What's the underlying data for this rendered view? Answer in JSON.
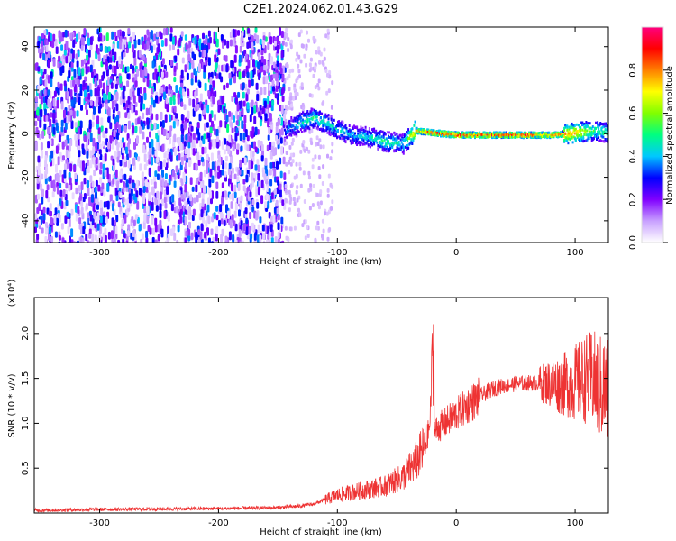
{
  "page": {
    "title": "C2E1.2024.062.01.43.G29"
  },
  "chart_data": [
    {
      "type": "heatmap",
      "xlabel": "Height of straight line (km)",
      "ylabel": "Frequency (Hz)",
      "xlim": [
        -355,
        128
      ],
      "ylim": [
        -50,
        49
      ],
      "xticks": [
        -300,
        -200,
        -100,
        0,
        100
      ],
      "yticks": [
        -40,
        -20,
        0,
        20,
        40
      ],
      "colorbar": {
        "label": "Normalized spectral amplitude",
        "range": [
          0.0,
          1.0
        ],
        "ticks": [
          "0.0",
          "0.2",
          "0.4",
          "0.6",
          "0.8"
        ],
        "colors": [
          "#ffffff",
          "#c8a0ff",
          "#8000ff",
          "#0000ff",
          "#00c8ff",
          "#00ff80",
          "#80ff00",
          "#ffff00",
          "#ff8000",
          "#ff0000",
          "#ff0080"
        ]
      },
      "noise_region": {
        "x_range": [
          -355,
          -145
        ],
        "y_range": [
          -50,
          49
        ]
      },
      "signal_track": [
        {
          "x": -145,
          "y": 2,
          "amp": 0.35
        },
        {
          "x": -130,
          "y": 6,
          "amp": 0.45
        },
        {
          "x": -120,
          "y": 8,
          "amp": 0.5
        },
        {
          "x": -105,
          "y": 4,
          "amp": 0.45
        },
        {
          "x": -90,
          "y": 0,
          "amp": 0.4
        },
        {
          "x": -75,
          "y": -1,
          "amp": 0.45
        },
        {
          "x": -60,
          "y": -3,
          "amp": 0.5
        },
        {
          "x": -45,
          "y": -4,
          "amp": 0.45
        },
        {
          "x": -35,
          "y": 2,
          "amp": 0.8
        },
        {
          "x": -20,
          "y": 1,
          "amp": 0.9
        },
        {
          "x": 0,
          "y": 0,
          "amp": 0.92
        },
        {
          "x": 60,
          "y": 0,
          "amp": 0.92
        },
        {
          "x": 80,
          "y": 0,
          "amp": 0.85
        },
        {
          "x": 100,
          "y": 1,
          "amp": 0.75
        },
        {
          "x": 115,
          "y": 2,
          "amp": 0.55
        },
        {
          "x": 128,
          "y": 1,
          "amp": 0.5
        }
      ]
    },
    {
      "type": "line",
      "xlabel": "Height of straight line (km)",
      "ylabel": "SNR (10 * v/v)",
      "multiplier": "(x10⁴)",
      "xlim": [
        -355,
        128
      ],
      "ylim": [
        0,
        2.4
      ],
      "xticks": [
        -300,
        -200,
        -100,
        0,
        100
      ],
      "yticks": [
        "0.5",
        "1.0",
        "1.5",
        "2.0"
      ],
      "color": "#ee3333",
      "series": [
        {
          "x": [
            -355,
            -300,
            -200,
            -150,
            -130,
            -120,
            -110,
            -100,
            -80,
            -60,
            -45,
            -35,
            -28,
            -25,
            -22,
            -20,
            -19,
            -18,
            -15,
            -10,
            0,
            10,
            20,
            30,
            40,
            50,
            60,
            70,
            80,
            90,
            100,
            110,
            115,
            120,
            128
          ],
          "y": [
            0.03,
            0.04,
            0.05,
            0.06,
            0.08,
            0.1,
            0.15,
            0.2,
            0.25,
            0.3,
            0.4,
            0.55,
            0.7,
            0.8,
            1.0,
            1.9,
            1.0,
            0.9,
            0.95,
            1.0,
            1.1,
            1.2,
            1.3,
            1.38,
            1.42,
            1.44,
            1.45,
            1.45,
            1.44,
            1.43,
            1.45,
            1.5,
            1.5,
            1.4,
            1.35
          ]
        }
      ]
    }
  ]
}
